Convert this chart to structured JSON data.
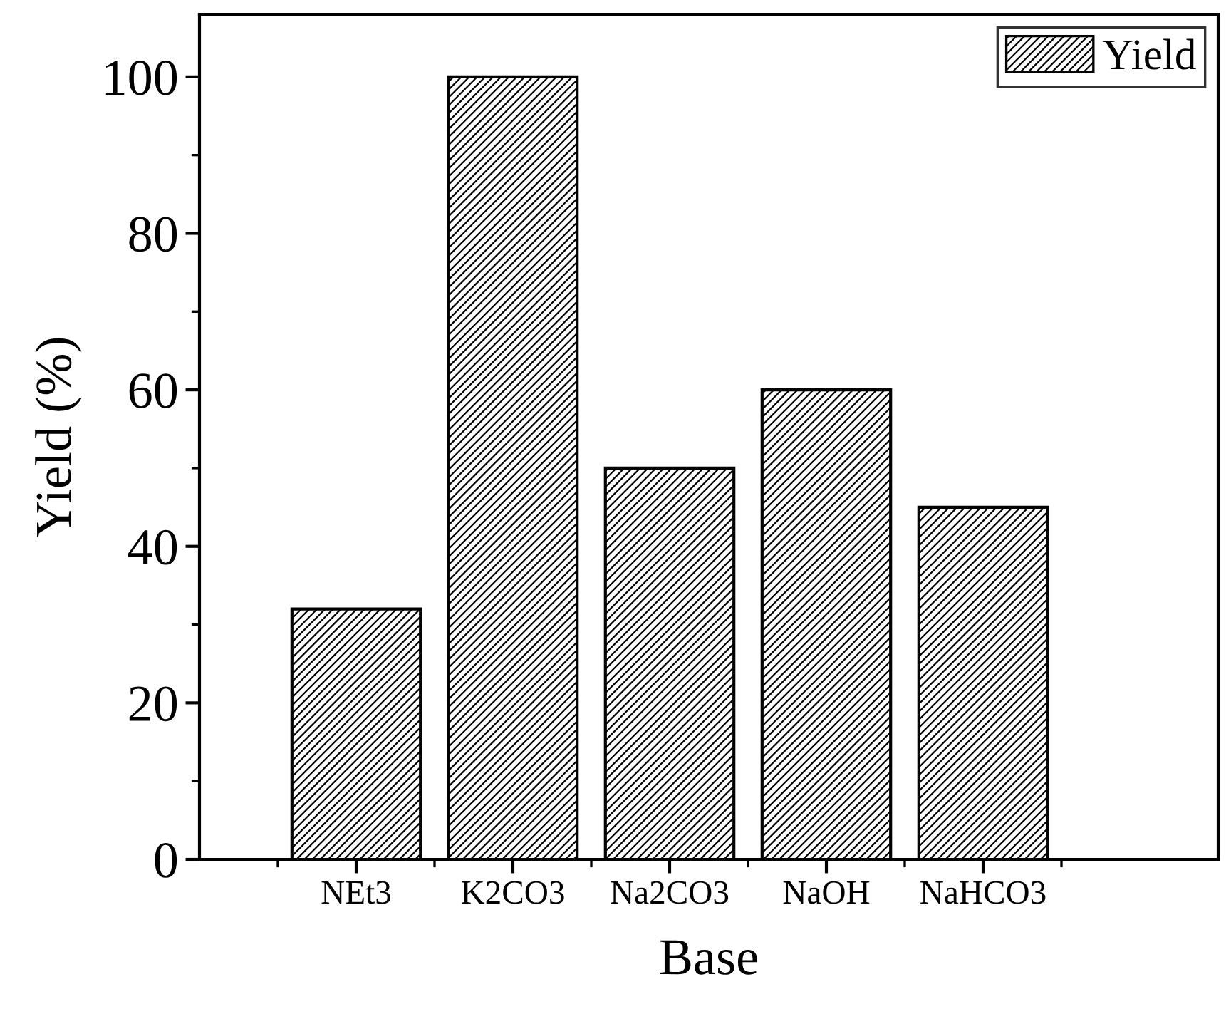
{
  "chart_data": {
    "type": "bar",
    "xlabel": "Base",
    "ylabel": "Yield (%)",
    "categories": [
      "NEt3",
      "K2CO3",
      "Na2CO3",
      "NaOH",
      "NaHCO3"
    ],
    "series": [
      {
        "name": "Yield",
        "color": "#000000",
        "values": [
          32,
          100,
          50,
          60,
          45
        ]
      }
    ],
    "ylim": [
      0,
      108
    ],
    "yticks": [
      0,
      20,
      40,
      60,
      80,
      100
    ],
    "grid": false,
    "legend": "top right"
  }
}
